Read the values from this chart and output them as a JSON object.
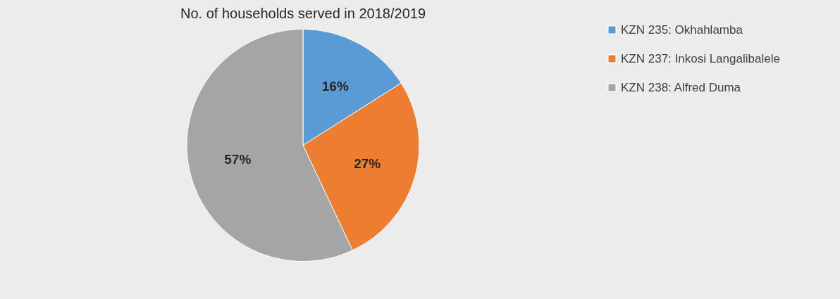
{
  "chart_data": {
    "type": "pie",
    "title": "No. of households served in 2018/2019",
    "categories": [
      "KZN 235: Okhahlamba",
      "KZN 237: Inkosi Langalibalele",
      "KZN 238: Alfred Duma"
    ],
    "values": [
      16,
      27,
      57
    ],
    "colors": [
      "#5b9bd5",
      "#ed7d31",
      "#a5a5a5"
    ],
    "value_labels": [
      "16%",
      "27%",
      "57%"
    ],
    "legend": "right"
  }
}
